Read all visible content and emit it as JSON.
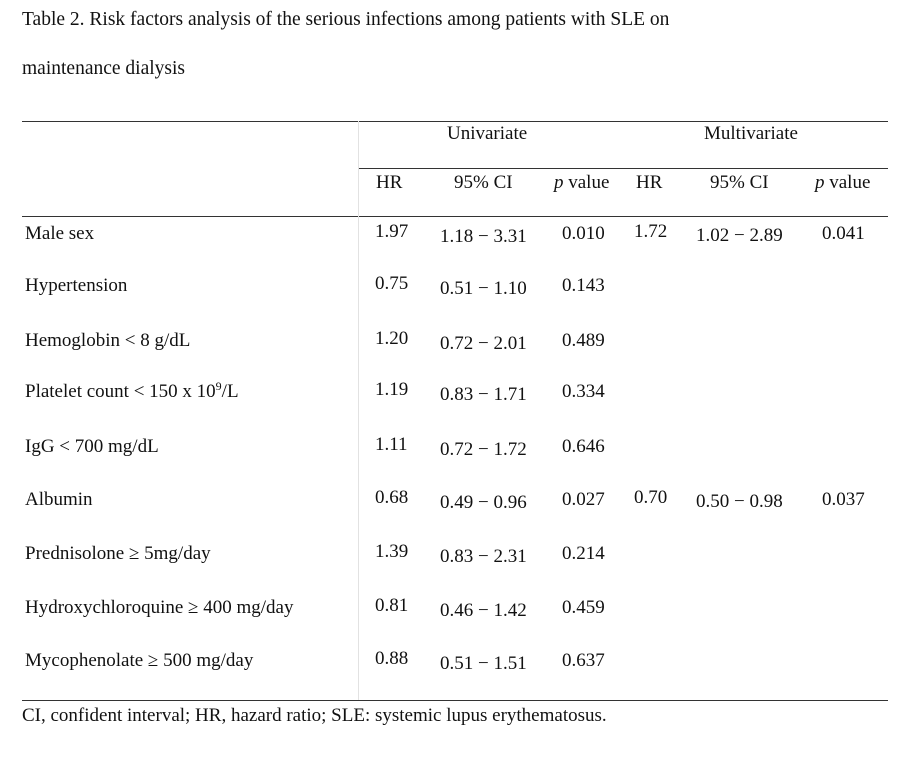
{
  "caption": {
    "line1": "Table 2. Risk factors analysis of the serious infections among patients with SLE on",
    "line2": "maintenance dialysis"
  },
  "header": {
    "univariate": "Univariate",
    "multivariate": "Multivariate",
    "hr": "HR",
    "ci": "95% CI",
    "p_italic": "p",
    "p_rest": " value"
  },
  "rows": [
    {
      "label": "Male sex",
      "uni_hr": "1.97",
      "uni_ci": "1.18 − 3.31",
      "uni_p": "0.010",
      "multi_hr": "1.72",
      "multi_ci": "1.02 − 2.89",
      "multi_p": "0.041"
    },
    {
      "label": "Hypertension",
      "uni_hr": "0.75",
      "uni_ci": "0.51 − 1.10",
      "uni_p": "0.143",
      "multi_hr": "",
      "multi_ci": "",
      "multi_p": ""
    },
    {
      "label": "Hemoglobin < 8 g/dL",
      "uni_hr": "1.20",
      "uni_ci": "0.72 − 2.01",
      "uni_p": "0.489",
      "multi_hr": "",
      "multi_ci": "",
      "multi_p": ""
    },
    {
      "label_pre": "Platelet count < 150 x 10",
      "label_sup": "9",
      "label_post": "/L",
      "uni_hr": "1.19",
      "uni_ci": "0.83 − 1.71",
      "uni_p": "0.334",
      "multi_hr": "",
      "multi_ci": "",
      "multi_p": ""
    },
    {
      "label": "IgG < 700 mg/dL",
      "uni_hr": "1.11",
      "uni_ci": "0.72 − 1.72",
      "uni_p": "0.646",
      "multi_hr": "",
      "multi_ci": "",
      "multi_p": ""
    },
    {
      "label": "Albumin",
      "uni_hr": "0.68",
      "uni_ci": "0.49 − 0.96",
      "uni_p": "0.027",
      "multi_hr": "0.70",
      "multi_ci": "0.50 − 0.98",
      "multi_p": "0.037"
    },
    {
      "label": "Prednisolone ≥ 5mg/day",
      "uni_hr": "1.39",
      "uni_ci": "0.83 − 2.31",
      "uni_p": "0.214",
      "multi_hr": "",
      "multi_ci": "",
      "multi_p": ""
    },
    {
      "label": "Hydroxychloroquine ≥ 400 mg/day",
      "uni_hr": "0.81",
      "uni_ci": "0.46 − 1.42",
      "uni_p": "0.459",
      "multi_hr": "",
      "multi_ci": "",
      "multi_p": ""
    },
    {
      "label": "Mycophenolate ≥ 500 mg/day",
      "uni_hr": "0.88",
      "uni_ci": "0.51 − 1.51",
      "uni_p": "0.637",
      "multi_hr": "",
      "multi_ci": "",
      "multi_p": ""
    }
  ],
  "footnote": "CI, confident interval; HR, hazard ratio; SLE: systemic lupus erythematosus."
}
